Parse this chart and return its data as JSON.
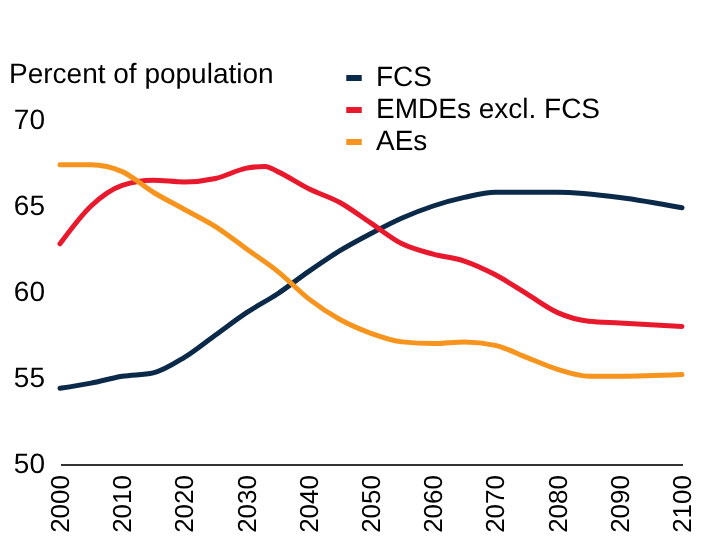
{
  "chart_data": {
    "type": "line",
    "ylabel": "Percent of population",
    "ylim": [
      50,
      70
    ],
    "yticks": [
      50,
      55,
      60,
      65,
      70
    ],
    "xlim": [
      2000,
      2100
    ],
    "xticks": [
      2000,
      2010,
      2020,
      2030,
      2040,
      2050,
      2060,
      2070,
      2080,
      2090,
      2100
    ],
    "grid": false,
    "legend": "top right",
    "series": [
      {
        "name": "FCS",
        "color": "#0b2a4a",
        "x": [
          2000,
          2005,
          2010,
          2015,
          2020,
          2025,
          2030,
          2035,
          2040,
          2045,
          2050,
          2055,
          2060,
          2065,
          2070,
          2080,
          2090,
          2100
        ],
        "values": [
          54.4,
          54.7,
          55.1,
          55.3,
          56.2,
          57.5,
          58.8,
          59.9,
          61.2,
          62.4,
          63.4,
          64.3,
          65.0,
          65.5,
          65.8,
          65.8,
          65.5,
          64.9
        ]
      },
      {
        "name": "EMDEs excl. FCS",
        "color": "#e8192c",
        "x": [
          2000,
          2005,
          2010,
          2015,
          2020,
          2025,
          2030,
          2033,
          2035,
          2040,
          2045,
          2050,
          2055,
          2060,
          2065,
          2070,
          2075,
          2080,
          2085,
          2090,
          2100
        ],
        "values": [
          62.8,
          65.0,
          66.2,
          66.5,
          66.4,
          66.6,
          67.2,
          67.3,
          67.0,
          66.0,
          65.2,
          64.0,
          62.8,
          62.2,
          61.8,
          61.0,
          59.9,
          58.8,
          58.3,
          58.2,
          58.0
        ]
      },
      {
        "name": "AEs",
        "color": "#f7941d",
        "x": [
          2000,
          2005,
          2010,
          2015,
          2020,
          2025,
          2030,
          2035,
          2040,
          2045,
          2050,
          2055,
          2060,
          2065,
          2070,
          2075,
          2080,
          2085,
          2090,
          2100
        ],
        "values": [
          67.4,
          67.4,
          67.0,
          65.8,
          64.8,
          63.8,
          62.5,
          61.2,
          59.6,
          58.4,
          57.6,
          57.1,
          57.0,
          57.1,
          56.9,
          56.2,
          55.5,
          55.1,
          55.1,
          55.2
        ]
      }
    ]
  }
}
